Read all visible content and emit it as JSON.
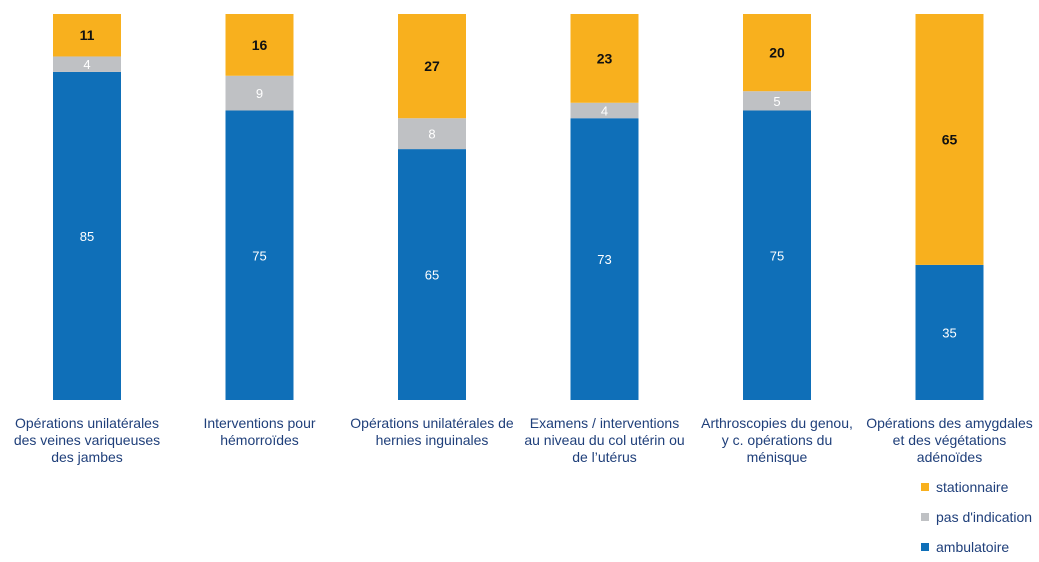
{
  "chart_data": {
    "type": "bar",
    "stacked": true,
    "categories": [
      "Opérations unilatérales des veines variqueuses des jambes",
      "Interventions pour hémorroïdes",
      "Opérations unilatérales de hernies inguinales",
      "Examens / interventions au niveau du col utérin ou de l’utérus",
      "Arthroscopies du genou, y c. opérations du ménisque",
      "Opérations des amygdales et des végétations adénoïdes"
    ],
    "series": [
      {
        "name": "ambulatoire",
        "color": "#0f6fb8",
        "values": [
          85,
          75,
          65,
          73,
          75,
          35
        ]
      },
      {
        "name": "pas d’indication",
        "color": "#bfc1c4",
        "values": [
          4,
          9,
          8,
          4,
          5,
          0
        ]
      },
      {
        "name": "stationnaire",
        "color": "#f8b01e",
        "values": [
          11,
          16,
          27,
          23,
          20,
          65
        ]
      }
    ],
    "data_labels": [
      [
        "85",
        "4",
        "11"
      ],
      [
        "75",
        "9",
        "16"
      ],
      [
        "65",
        "8",
        "27"
      ],
      [
        "73",
        "4",
        "23"
      ],
      [
        "75",
        "5",
        "20"
      ],
      [
        "35",
        "",
        "65"
      ]
    ],
    "ylim": [
      0,
      100
    ],
    "grid": false,
    "legend_position": "bottom-right"
  },
  "legend": [
    {
      "label": "stationnaire",
      "color": "#f8b01e"
    },
    {
      "label": "pas d'indication",
      "color": "#bfc1c4"
    },
    {
      "label": "ambulatoire",
      "color": "#0f6fb8"
    }
  ],
  "category_labels": [
    [
      "Opérations unilatérales",
      "des veines variqueuses",
      "des jambes"
    ],
    [
      "Interventions pour",
      "hémorroïdes"
    ],
    [
      "Opérations unilatérales de",
      "hernies inguinales"
    ],
    [
      "Examens / interventions",
      "au niveau du col utérin ou",
      "de l’utérus"
    ],
    [
      "Arthroscopies du genou,",
      "y c. opérations du",
      "ménisque"
    ],
    [
      "Opérations des amygdales",
      "et des végétations",
      "adénoïdes"
    ]
  ]
}
